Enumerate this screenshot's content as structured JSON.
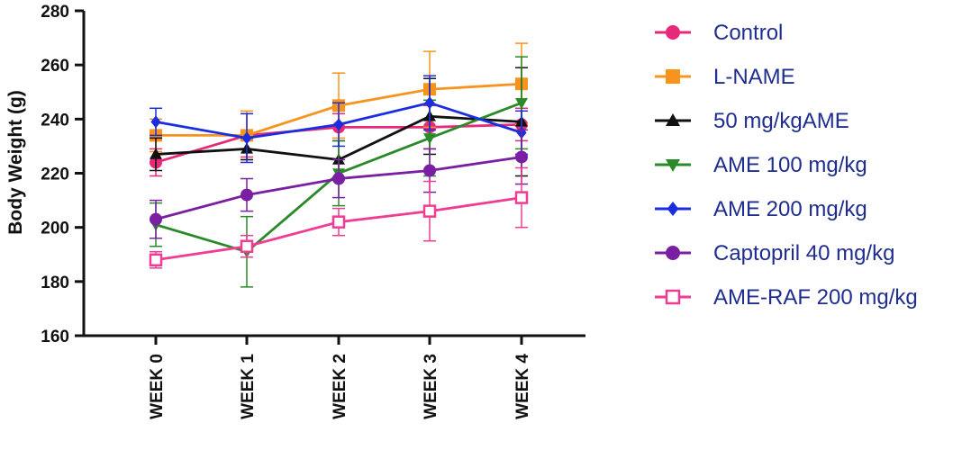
{
  "chart_data": {
    "type": "line",
    "title": "",
    "xlabel": "",
    "ylabel": "Body Weight (g)",
    "categories": [
      "WEEK 0",
      "WEEK 1",
      "WEEK 2",
      "WEEK 3",
      "WEEK 4"
    ],
    "ylim": [
      160,
      280
    ],
    "yticks": [
      "160",
      "180",
      "200",
      "220",
      "240",
      "260",
      "280"
    ],
    "grid": false,
    "legend_position": "right",
    "series": [
      {
        "name": "Control",
        "color": "#e8297a",
        "marker": "circle",
        "values": [
          224,
          234,
          237,
          237,
          238
        ],
        "errors": [
          5,
          8,
          5,
          8,
          6
        ]
      },
      {
        "name": "L-NAME",
        "color": "#f7941d",
        "marker": "square",
        "values": [
          234,
          234,
          245,
          251,
          253
        ],
        "errors": [
          6,
          9,
          12,
          14,
          15
        ]
      },
      {
        "name": "50 mg/kgAME",
        "color": "#111111",
        "marker": "triangle-up",
        "values": [
          227,
          229,
          225,
          241,
          239
        ],
        "errors": [
          6,
          4,
          7,
          14,
          20
        ]
      },
      {
        "name": "AME 100 mg/kg",
        "color": "#2a8a2a",
        "marker": "triangle-down",
        "values": [
          201,
          191,
          220,
          233,
          246
        ],
        "errors": [
          8,
          13,
          12,
          14,
          17
        ]
      },
      {
        "name": "AME 200 mg/kg",
        "color": "#1a2ee0",
        "marker": "diamond",
        "values": [
          239,
          233,
          238,
          246,
          235
        ],
        "errors": [
          5,
          9,
          8,
          10,
          8
        ]
      },
      {
        "name": "Captopril 40 mg/kg",
        "color": "#7a1fa2",
        "marker": "circle",
        "values": [
          203,
          212,
          218,
          221,
          226
        ],
        "errors": [
          7,
          6,
          7,
          8,
          10
        ]
      },
      {
        "name": "AME-RAF 200 mg/kg",
        "color": "#ee3d93",
        "marker": "square-open",
        "values": [
          188,
          193,
          202,
          206,
          211
        ],
        "errors": [
          3,
          4,
          5,
          11,
          11
        ]
      }
    ]
  }
}
